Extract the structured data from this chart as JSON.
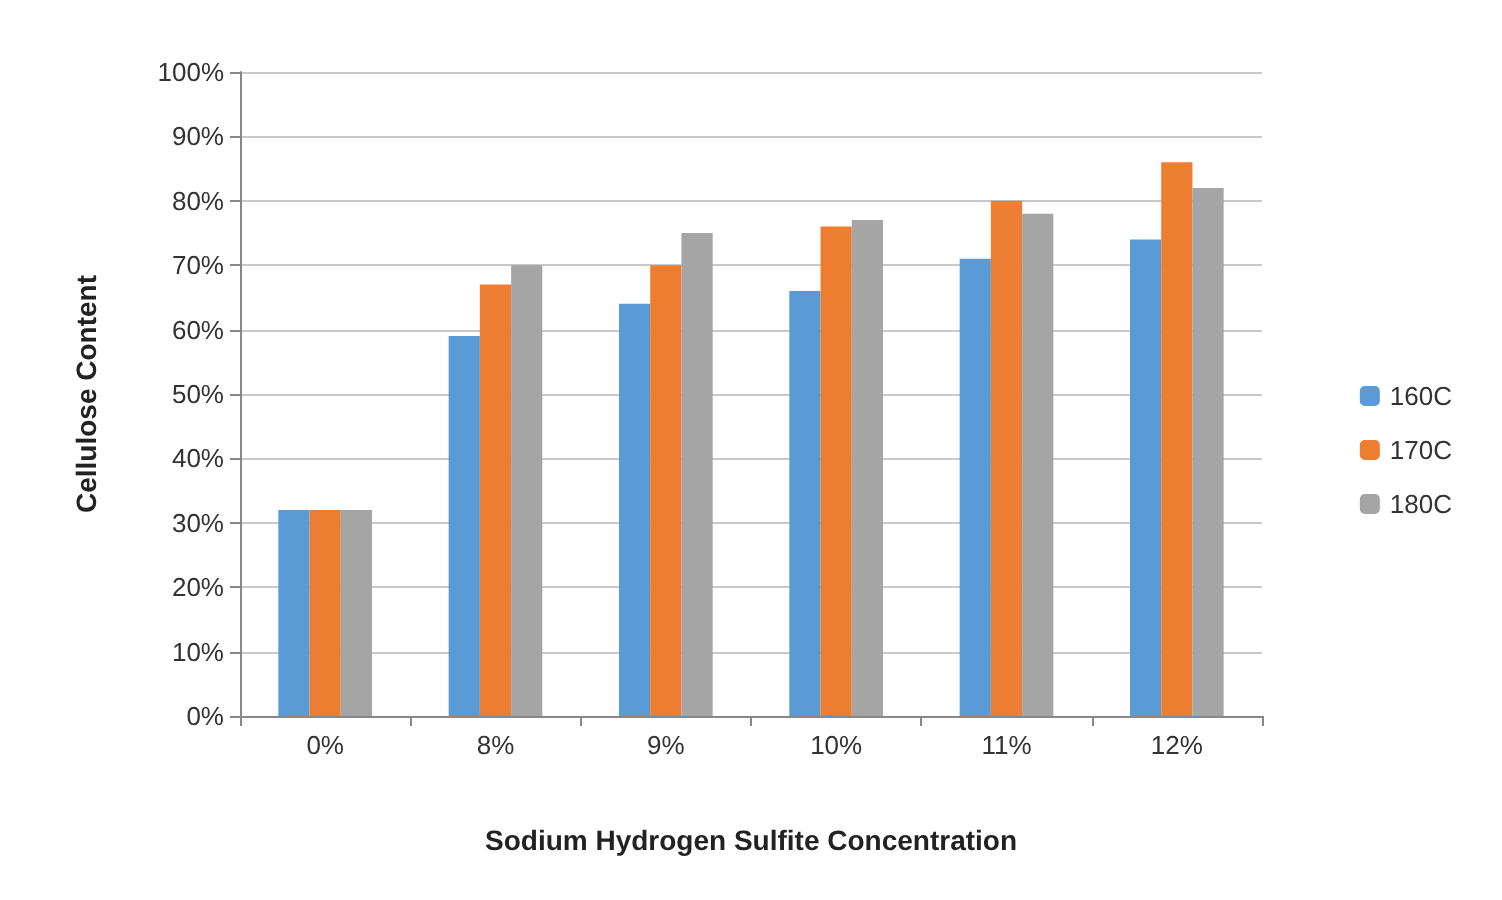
{
  "chart_data": {
    "type": "bar",
    "xlabel": "Sodium Hydrogen Sulfite Concentration",
    "ylabel": "Cellulose Content",
    "categories": [
      "0%",
      "8%",
      "9%",
      "10%",
      "11%",
      "12%"
    ],
    "series": [
      {
        "name": "160C",
        "color": "#5b9bd5",
        "values": [
          32,
          59,
          64,
          66,
          71,
          74
        ]
      },
      {
        "name": "170C",
        "color": "#ed7d31",
        "values": [
          32,
          67,
          70,
          76,
          80,
          86
        ]
      },
      {
        "name": "180C",
        "color": "#a5a5a5",
        "values": [
          32,
          70,
          75,
          77,
          78,
          82
        ]
      }
    ],
    "ylim": [
      0,
      100
    ],
    "yticks": [
      {
        "value": 0,
        "label": "0%"
      },
      {
        "value": 10,
        "label": "10%"
      },
      {
        "value": 20,
        "label": "20%"
      },
      {
        "value": 30,
        "label": "30%"
      },
      {
        "value": 40,
        "label": "40%"
      },
      {
        "value": 50,
        "label": "50%"
      },
      {
        "value": 60,
        "label": "60%"
      },
      {
        "value": 70,
        "label": "70%"
      },
      {
        "value": 80,
        "label": "80%"
      },
      {
        "value": 90,
        "label": "90%"
      },
      {
        "value": 100,
        "label": "100%"
      }
    ],
    "grid": "y",
    "legend": "right"
  }
}
